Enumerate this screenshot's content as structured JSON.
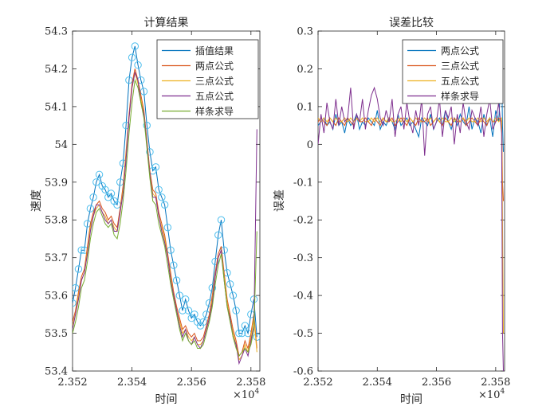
{
  "chart_data": [
    {
      "type": "line",
      "title": "计算结果",
      "xlabel": "时间",
      "ylabel": "速度",
      "x_exponent_label": "×10",
      "x_exponent_power": "4",
      "xlim": [
        2.352,
        2.3583
      ],
      "ylim": [
        53.4,
        54.3
      ],
      "xticks": [
        2.352,
        2.354,
        2.356,
        2.358
      ],
      "xtick_labels": [
        "2.352",
        "2.354",
        "2.356",
        "2.358"
      ],
      "yticks": [
        53.4,
        53.5,
        53.6,
        53.7,
        53.8,
        53.9,
        54.0,
        54.1,
        54.2,
        54.3
      ],
      "ytick_labels": [
        "53.4",
        "53.5",
        "53.6",
        "53.7",
        "53.8",
        "53.9",
        "54",
        "54.1",
        "54.2",
        "54.3"
      ],
      "legend_position": "top-right",
      "x": [
        2.352,
        2.3521,
        2.3522,
        2.3523,
        2.3524,
        2.3525,
        2.3526,
        2.3527,
        2.3528,
        2.3529,
        2.353,
        2.3531,
        2.3532,
        2.3533,
        2.3534,
        2.3535,
        2.3536,
        2.3537,
        2.3538,
        2.3539,
        2.354,
        2.3541,
        2.3542,
        2.3543,
        2.3544,
        2.3545,
        2.3546,
        2.3547,
        2.3548,
        2.3549,
        2.355,
        2.3551,
        2.3552,
        2.3553,
        2.3554,
        2.3555,
        2.3556,
        2.3557,
        2.3558,
        2.3559,
        2.356,
        2.3561,
        2.3562,
        2.3563,
        2.3564,
        2.3565,
        2.3566,
        2.3567,
        2.3568,
        2.3569,
        2.357,
        2.3571,
        2.3572,
        2.3573,
        2.3574,
        2.3575,
        2.3576,
        2.3577,
        2.3578,
        2.3579,
        2.358,
        2.3581,
        2.3582
      ],
      "series": [
        {
          "name": "插值结果",
          "color": "#0072BD",
          "marker": "circle",
          "marker_color": "#4DBEEE",
          "values": [
            53.58,
            53.62,
            53.67,
            53.72,
            53.72,
            53.79,
            53.83,
            53.86,
            53.9,
            53.92,
            53.89,
            53.88,
            53.86,
            53.87,
            53.85,
            53.84,
            53.9,
            53.95,
            54.05,
            54.17,
            54.23,
            54.26,
            54.21,
            54.17,
            54.14,
            54.05,
            53.98,
            53.93,
            53.94,
            53.88,
            53.86,
            53.84,
            53.78,
            53.72,
            53.68,
            53.64,
            53.6,
            53.56,
            53.59,
            53.56,
            53.54,
            53.55,
            53.53,
            53.52,
            53.53,
            53.55,
            53.58,
            53.62,
            53.69,
            53.76,
            53.8,
            53.72,
            53.66,
            53.63,
            53.6,
            53.56,
            53.5,
            53.5,
            53.52,
            53.5,
            53.55,
            53.59,
            53.49
          ]
        },
        {
          "name": "两点公式",
          "color": "#D95319",
          "values": [
            53.53,
            53.56,
            53.61,
            53.65,
            53.67,
            53.73,
            53.79,
            53.82,
            53.84,
            53.85,
            53.83,
            53.82,
            53.8,
            53.81,
            53.79,
            53.78,
            53.83,
            53.89,
            53.98,
            54.08,
            54.16,
            54.2,
            54.17,
            54.13,
            54.09,
            54.01,
            53.93,
            53.88,
            53.87,
            53.82,
            53.79,
            53.76,
            53.71,
            53.66,
            53.61,
            53.57,
            53.54,
            53.51,
            53.52,
            53.5,
            53.49,
            53.5,
            53.48,
            53.48,
            53.49,
            53.52,
            53.55,
            53.6,
            53.66,
            53.71,
            53.73,
            53.66,
            53.59,
            53.55,
            53.51,
            53.48,
            53.44,
            53.45,
            53.48,
            53.46,
            53.5,
            53.55,
            53.46
          ]
        },
        {
          "name": "三点公式",
          "color": "#EDB120",
          "values": [
            53.52,
            53.55,
            53.6,
            53.64,
            53.66,
            53.72,
            53.78,
            53.81,
            53.83,
            53.84,
            53.82,
            53.81,
            53.79,
            53.8,
            53.78,
            53.77,
            53.82,
            53.88,
            53.97,
            54.07,
            54.15,
            54.19,
            54.16,
            54.12,
            54.08,
            54.0,
            53.92,
            53.87,
            53.86,
            53.81,
            53.78,
            53.75,
            53.7,
            53.65,
            53.6,
            53.56,
            53.53,
            53.5,
            53.51,
            53.49,
            53.48,
            53.49,
            53.47,
            53.47,
            53.48,
            53.51,
            53.54,
            53.59,
            53.65,
            53.7,
            53.72,
            53.65,
            53.58,
            53.54,
            53.5,
            53.47,
            53.43,
            53.44,
            53.47,
            53.45,
            53.49,
            53.54,
            53.45
          ]
        },
        {
          "name": "五点公式",
          "color": "#7E2F8E",
          "values": [
            53.51,
            53.55,
            53.59,
            53.64,
            53.66,
            53.71,
            53.77,
            53.81,
            53.84,
            53.84,
            53.82,
            53.8,
            53.79,
            53.8,
            53.77,
            53.77,
            53.82,
            53.87,
            53.96,
            54.07,
            54.15,
            54.19,
            54.17,
            54.11,
            54.08,
            54.0,
            53.92,
            53.86,
            53.86,
            53.81,
            53.77,
            53.74,
            53.7,
            53.64,
            53.6,
            53.56,
            53.52,
            53.49,
            53.51,
            53.48,
            53.47,
            53.49,
            53.47,
            53.46,
            53.48,
            53.51,
            53.54,
            53.58,
            53.65,
            53.7,
            53.72,
            53.64,
            53.57,
            53.54,
            53.49,
            53.47,
            53.42,
            53.44,
            53.46,
            53.44,
            53.48,
            53.52,
            54.04
          ]
        },
        {
          "name": "样条求导",
          "color": "#77AC30",
          "values": [
            53.5,
            53.53,
            53.57,
            53.62,
            53.64,
            53.69,
            53.75,
            53.79,
            53.82,
            53.83,
            53.81,
            53.79,
            53.78,
            53.79,
            53.76,
            53.75,
            53.79,
            53.85,
            53.93,
            54.03,
            54.11,
            54.17,
            54.15,
            54.11,
            54.07,
            53.99,
            53.91,
            53.85,
            53.84,
            53.79,
            53.76,
            53.73,
            53.68,
            53.63,
            53.59,
            53.55,
            53.51,
            53.48,
            53.5,
            53.48,
            53.47,
            53.48,
            53.46,
            53.46,
            53.47,
            53.5,
            53.53,
            53.57,
            53.63,
            53.68,
            53.71,
            53.64,
            53.57,
            53.53,
            53.49,
            53.46,
            53.44,
            53.45,
            53.46,
            53.45,
            53.47,
            53.51,
            53.77
          ]
        }
      ]
    },
    {
      "type": "line",
      "title": "误差比较",
      "xlabel": "时间",
      "ylabel": "误差",
      "x_exponent_label": "×10",
      "x_exponent_power": "4",
      "xlim": [
        2.352,
        2.3583
      ],
      "ylim": [
        -0.6,
        0.3
      ],
      "xticks": [
        2.352,
        2.354,
        2.356,
        2.358
      ],
      "xtick_labels": [
        "2.352",
        "2.354",
        "2.356",
        "2.358"
      ],
      "yticks": [
        -0.6,
        -0.5,
        -0.4,
        -0.3,
        -0.2,
        -0.1,
        0,
        0.1,
        0.2,
        0.3
      ],
      "ytick_labels": [
        "-0.6",
        "-0.5",
        "-0.4",
        "-0.3",
        "-0.2",
        "-0.1",
        "0",
        "0.1",
        "0.2",
        "0.3"
      ],
      "legend_position": "top-right",
      "x": [
        2.352,
        2.3521,
        2.3522,
        2.3523,
        2.3524,
        2.3525,
        2.3526,
        2.3527,
        2.3528,
        2.3529,
        2.353,
        2.3531,
        2.3532,
        2.3533,
        2.3534,
        2.3535,
        2.3536,
        2.3537,
        2.3538,
        2.3539,
        2.354,
        2.3541,
        2.3542,
        2.3543,
        2.3544,
        2.3545,
        2.3546,
        2.3547,
        2.3548,
        2.3549,
        2.355,
        2.3551,
        2.3552,
        2.3553,
        2.3554,
        2.3555,
        2.3556,
        2.3557,
        2.3558,
        2.3559,
        2.356,
        2.3561,
        2.3562,
        2.3563,
        2.3564,
        2.3565,
        2.3566,
        2.3567,
        2.3568,
        2.3569,
        2.357,
        2.3571,
        2.3572,
        2.3573,
        2.3574,
        2.3575,
        2.3576,
        2.3577,
        2.3578,
        2.3579,
        2.358,
        2.3581,
        2.3582,
        2.35823,
        2.35826
      ],
      "series": [
        {
          "name": "两点公式",
          "color": "#0072BD",
          "values": [
            0.05,
            0.06,
            0.07,
            0.05,
            0.06,
            0.04,
            0.08,
            0.05,
            0.06,
            0.03,
            0.07,
            0.05,
            0.06,
            0.08,
            0.04,
            0.06,
            0.05,
            0.07,
            0.06,
            0.05,
            0.09,
            0.04,
            0.06,
            0.05,
            0.07,
            0.06,
            0.04,
            0.08,
            0.05,
            0.06,
            0.07,
            0.05,
            0.06,
            0.04,
            0.02,
            0.07,
            0.06,
            0.05,
            0.08,
            0.04,
            0.06,
            0.07,
            0.05,
            0.09,
            0.06,
            0.04,
            0.07,
            0.05,
            0.08,
            0.06,
            0.05,
            0.1,
            0.04,
            0.07,
            0.06,
            0.03,
            0.08,
            0.05,
            0.07,
            0.02,
            0.09,
            0.06,
            0.21,
            0.05,
            -0.02
          ]
        },
        {
          "name": "三点公式",
          "color": "#D95319",
          "values": [
            0.06,
            0.07,
            0.06,
            0.05,
            0.07,
            0.06,
            0.05,
            0.07,
            0.06,
            0.05,
            0.07,
            0.06,
            0.05,
            0.07,
            0.06,
            0.06,
            0.07,
            0.06,
            0.05,
            0.07,
            0.06,
            0.05,
            0.07,
            0.06,
            0.06,
            0.07,
            0.05,
            0.06,
            0.07,
            0.06,
            0.05,
            0.07,
            0.06,
            0.05,
            0.07,
            0.06,
            0.06,
            0.07,
            0.05,
            0.06,
            0.07,
            0.06,
            0.05,
            0.07,
            0.06,
            0.05,
            0.07,
            0.06,
            0.06,
            0.07,
            0.05,
            0.06,
            0.07,
            0.06,
            0.05,
            0.07,
            0.06,
            0.05,
            0.07,
            0.06,
            0.06,
            0.07,
            0.06,
            -0.1,
            -0.15
          ]
        },
        {
          "name": "五点公式",
          "color": "#EDB120",
          "values": [
            0.07,
            0.06,
            0.07,
            0.06,
            0.07,
            0.06,
            0.07,
            0.06,
            0.06,
            0.07,
            0.06,
            0.07,
            0.06,
            0.07,
            0.06,
            0.07,
            0.06,
            0.06,
            0.07,
            0.06,
            0.07,
            0.06,
            0.07,
            0.06,
            0.07,
            0.06,
            0.06,
            0.07,
            0.06,
            0.07,
            0.06,
            0.07,
            0.06,
            0.07,
            0.06,
            0.06,
            0.07,
            0.06,
            0.07,
            0.06,
            0.07,
            0.06,
            0.07,
            0.06,
            0.06,
            0.07,
            0.06,
            0.07,
            0.06,
            0.07,
            0.06,
            0.07,
            0.06,
            0.06,
            0.07,
            0.06,
            0.07,
            0.06,
            0.07,
            0.06,
            0.07,
            0.06,
            0.07,
            -0.2,
            -0.5
          ]
        },
        {
          "name": "样条求导",
          "color": "#7E2F8E",
          "values": [
            0.0,
            0.08,
            0.03,
            0.11,
            0.06,
            0.04,
            0.12,
            0.05,
            0.1,
            0.06,
            0.07,
            0.15,
            0.04,
            0.08,
            0.06,
            0.12,
            0.04,
            0.09,
            0.13,
            0.15,
            0.12,
            0.07,
            0.05,
            0.09,
            0.06,
            0.12,
            0.02,
            0.08,
            0.1,
            0.04,
            0.11,
            0.06,
            0.03,
            0.09,
            0.05,
            0.12,
            -0.03,
            0.08,
            0.1,
            0.04,
            0.06,
            0.12,
            0.02,
            0.09,
            0.07,
            0.1,
            0.0,
            0.08,
            0.03,
            0.11,
            0.06,
            0.04,
            0.09,
            0.07,
            0.05,
            0.1,
            0.02,
            0.08,
            0.12,
            0.04,
            0.06,
            0.11,
            0.03,
            -0.5,
            -0.6
          ]
        }
      ]
    }
  ]
}
